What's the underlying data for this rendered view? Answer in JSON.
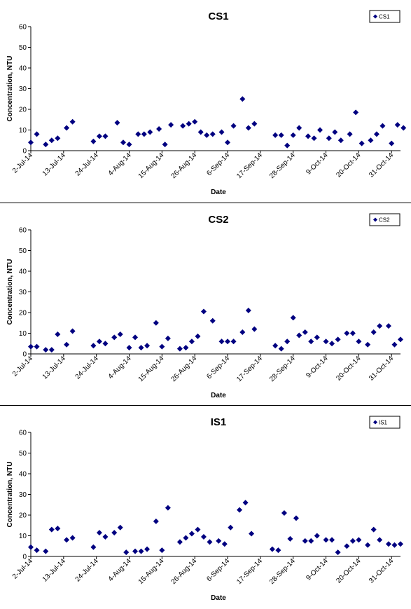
{
  "chart_data": [
    {
      "type": "scatter",
      "title": "CS1",
      "xlabel": "Date",
      "ylabel": "Concentration, NTU",
      "ylim": [
        0,
        60
      ],
      "yticks": [
        "0",
        "10",
        "20",
        "30",
        "40",
        "50",
        "60"
      ],
      "xlim": [
        "2014-07-02",
        "2014-11-03"
      ],
      "xticks": [
        "2-Jul-14",
        "13-Jul-14",
        "24-Jul-14",
        "4-Aug-14",
        "15-Aug-14",
        "26-Aug-14",
        "6-Sep-14",
        "17-Sep-14",
        "28-Sep-14",
        "9-Oct-14",
        "20-Oct-14",
        "31-Oct-14"
      ],
      "legend": "top-right",
      "grid": false,
      "marker_color": "#000080",
      "series": [
        {
          "name": "CS1",
          "points": [
            {
              "x": "2014-07-02",
              "y": 4
            },
            {
              "x": "2014-07-04",
              "y": 8
            },
            {
              "x": "2014-07-07",
              "y": 3
            },
            {
              "x": "2014-07-09",
              "y": 5
            },
            {
              "x": "2014-07-11",
              "y": 6
            },
            {
              "x": "2014-07-14",
              "y": 11
            },
            {
              "x": "2014-07-16",
              "y": 14
            },
            {
              "x": "2014-07-23",
              "y": 4.5
            },
            {
              "x": "2014-07-25",
              "y": 7
            },
            {
              "x": "2014-07-27",
              "y": 7
            },
            {
              "x": "2014-07-31",
              "y": 13.5
            },
            {
              "x": "2014-08-02",
              "y": 4
            },
            {
              "x": "2014-08-04",
              "y": 3
            },
            {
              "x": "2014-08-07",
              "y": 8
            },
            {
              "x": "2014-08-09",
              "y": 8
            },
            {
              "x": "2014-08-11",
              "y": 9
            },
            {
              "x": "2014-08-14",
              "y": 10.5
            },
            {
              "x": "2014-08-16",
              "y": 3
            },
            {
              "x": "2014-08-18",
              "y": 12.5
            },
            {
              "x": "2014-08-22",
              "y": 12
            },
            {
              "x": "2014-08-24",
              "y": 13
            },
            {
              "x": "2014-08-26",
              "y": 14
            },
            {
              "x": "2014-08-28",
              "y": 9
            },
            {
              "x": "2014-08-30",
              "y": 7.5
            },
            {
              "x": "2014-09-01",
              "y": 8
            },
            {
              "x": "2014-09-04",
              "y": 9
            },
            {
              "x": "2014-09-06",
              "y": 4
            },
            {
              "x": "2014-09-08",
              "y": 12
            },
            {
              "x": "2014-09-11",
              "y": 25
            },
            {
              "x": "2014-09-13",
              "y": 11
            },
            {
              "x": "2014-09-15",
              "y": 13
            },
            {
              "x": "2014-09-22",
              "y": 7.5
            },
            {
              "x": "2014-09-24",
              "y": 7.5
            },
            {
              "x": "2014-09-26",
              "y": 2.5
            },
            {
              "x": "2014-09-28",
              "y": 7.5
            },
            {
              "x": "2014-09-30",
              "y": 11
            },
            {
              "x": "2014-10-03",
              "y": 7
            },
            {
              "x": "2014-10-05",
              "y": 6
            },
            {
              "x": "2014-10-07",
              "y": 10
            },
            {
              "x": "2014-10-10",
              "y": 6
            },
            {
              "x": "2014-10-12",
              "y": 9
            },
            {
              "x": "2014-10-14",
              "y": 5
            },
            {
              "x": "2014-10-17",
              "y": 8
            },
            {
              "x": "2014-10-19",
              "y": 18.5
            },
            {
              "x": "2014-10-21",
              "y": 3.5
            },
            {
              "x": "2014-10-24",
              "y": 5
            },
            {
              "x": "2014-10-26",
              "y": 8
            },
            {
              "x": "2014-10-28",
              "y": 12
            },
            {
              "x": "2014-10-31",
              "y": 3.5
            },
            {
              "x": "2014-11-02",
              "y": 12.5
            },
            {
              "x": "2014-11-04",
              "y": 11
            }
          ]
        }
      ]
    },
    {
      "type": "scatter",
      "title": "CS2",
      "xlabel": "Date",
      "ylabel": "Concentration, NTU",
      "ylim": [
        0,
        60
      ],
      "yticks": [
        "0",
        "10",
        "20",
        "30",
        "40",
        "50",
        "60"
      ],
      "xlim": [
        "2014-07-02",
        "2014-11-03"
      ],
      "xticks": [
        "2-Jul-14",
        "13-Jul-14",
        "24-Jul-14",
        "4-Aug-14",
        "15-Aug-14",
        "26-Aug-14",
        "6-Sep-14",
        "17-Sep-14",
        "28-Sep-14",
        "9-Oct-14",
        "20-Oct-14",
        "31-Oct-14"
      ],
      "legend": "top-right",
      "grid": false,
      "marker_color": "#000080",
      "series": [
        {
          "name": "CS2",
          "points": [
            {
              "x": "2014-07-02",
              "y": 3.5
            },
            {
              "x": "2014-07-04",
              "y": 3.5
            },
            {
              "x": "2014-07-07",
              "y": 2
            },
            {
              "x": "2014-07-09",
              "y": 2
            },
            {
              "x": "2014-07-11",
              "y": 9.5
            },
            {
              "x": "2014-07-14",
              "y": 4.5
            },
            {
              "x": "2014-07-16",
              "y": 11
            },
            {
              "x": "2014-07-23",
              "y": 4
            },
            {
              "x": "2014-07-25",
              "y": 6
            },
            {
              "x": "2014-07-27",
              "y": 5
            },
            {
              "x": "2014-07-30",
              "y": 8
            },
            {
              "x": "2014-08-01",
              "y": 9.5
            },
            {
              "x": "2014-08-04",
              "y": 3
            },
            {
              "x": "2014-08-06",
              "y": 8
            },
            {
              "x": "2014-08-08",
              "y": 3
            },
            {
              "x": "2014-08-10",
              "y": 4
            },
            {
              "x": "2014-08-13",
              "y": 15
            },
            {
              "x": "2014-08-15",
              "y": 3.5
            },
            {
              "x": "2014-08-17",
              "y": 7.5
            },
            {
              "x": "2014-08-21",
              "y": 2.5
            },
            {
              "x": "2014-08-23",
              "y": 3
            },
            {
              "x": "2014-08-25",
              "y": 6
            },
            {
              "x": "2014-08-27",
              "y": 8.5
            },
            {
              "x": "2014-08-29",
              "y": 20.5
            },
            {
              "x": "2014-09-01",
              "y": 16
            },
            {
              "x": "2014-09-04",
              "y": 6
            },
            {
              "x": "2014-09-06",
              "y": 6
            },
            {
              "x": "2014-09-08",
              "y": 6
            },
            {
              "x": "2014-09-11",
              "y": 10.5
            },
            {
              "x": "2014-09-13",
              "y": 21
            },
            {
              "x": "2014-09-15",
              "y": 12
            },
            {
              "x": "2014-09-22",
              "y": 4
            },
            {
              "x": "2014-09-24",
              "y": 2.5
            },
            {
              "x": "2014-09-26",
              "y": 6
            },
            {
              "x": "2014-09-28",
              "y": 17.5
            },
            {
              "x": "2014-09-30",
              "y": 9
            },
            {
              "x": "2014-10-02",
              "y": 10.5
            },
            {
              "x": "2014-10-04",
              "y": 6
            },
            {
              "x": "2014-10-06",
              "y": 8
            },
            {
              "x": "2014-10-09",
              "y": 6
            },
            {
              "x": "2014-10-11",
              "y": 5
            },
            {
              "x": "2014-10-13",
              "y": 7
            },
            {
              "x": "2014-10-16",
              "y": 10
            },
            {
              "x": "2014-10-18",
              "y": 10
            },
            {
              "x": "2014-10-20",
              "y": 6
            },
            {
              "x": "2014-10-23",
              "y": 4.5
            },
            {
              "x": "2014-10-25",
              "y": 10.5
            },
            {
              "x": "2014-10-27",
              "y": 13.5
            },
            {
              "x": "2014-10-30",
              "y": 13.5
            },
            {
              "x": "2014-11-01",
              "y": 4.5
            },
            {
              "x": "2014-11-03",
              "y": 7
            }
          ]
        }
      ]
    },
    {
      "type": "scatter",
      "title": "IS1",
      "xlabel": "Date",
      "ylabel": "Concentration, NTU",
      "ylim": [
        0,
        60
      ],
      "yticks": [
        "0",
        "10",
        "20",
        "30",
        "40",
        "50",
        "60"
      ],
      "xlim": [
        "2014-07-02",
        "2014-11-03"
      ],
      "xticks": [
        "2-Jul-14",
        "13-Jul-14",
        "24-Jul-14",
        "4-Aug-14",
        "15-Aug-14",
        "26-Aug-14",
        "6-Sep-14",
        "17-Sep-14",
        "28-Sep-14",
        "9-Oct-14",
        "20-Oct-14",
        "31-Oct-14"
      ],
      "legend": "top-right",
      "grid": false,
      "marker_color": "#000080",
      "series": [
        {
          "name": "IS1",
          "points": [
            {
              "x": "2014-07-02",
              "y": 4.5
            },
            {
              "x": "2014-07-04",
              "y": 3
            },
            {
              "x": "2014-07-07",
              "y": 2.5
            },
            {
              "x": "2014-07-09",
              "y": 13
            },
            {
              "x": "2014-07-11",
              "y": 13.5
            },
            {
              "x": "2014-07-14",
              "y": 8
            },
            {
              "x": "2014-07-16",
              "y": 9
            },
            {
              "x": "2014-07-23",
              "y": 4.5
            },
            {
              "x": "2014-07-25",
              "y": 11.5
            },
            {
              "x": "2014-07-27",
              "y": 9.5
            },
            {
              "x": "2014-07-30",
              "y": 11.5
            },
            {
              "x": "2014-08-01",
              "y": 14
            },
            {
              "x": "2014-08-03",
              "y": 2
            },
            {
              "x": "2014-08-06",
              "y": 2.5
            },
            {
              "x": "2014-08-08",
              "y": 2.5
            },
            {
              "x": "2014-08-10",
              "y": 3.5
            },
            {
              "x": "2014-08-13",
              "y": 17
            },
            {
              "x": "2014-08-15",
              "y": 3
            },
            {
              "x": "2014-08-17",
              "y": 23.5
            },
            {
              "x": "2014-08-21",
              "y": 7
            },
            {
              "x": "2014-08-23",
              "y": 9
            },
            {
              "x": "2014-08-25",
              "y": 11
            },
            {
              "x": "2014-08-27",
              "y": 13
            },
            {
              "x": "2014-08-29",
              "y": 9.5
            },
            {
              "x": "2014-08-31",
              "y": 7
            },
            {
              "x": "2014-09-03",
              "y": 7.5
            },
            {
              "x": "2014-09-05",
              "y": 6
            },
            {
              "x": "2014-09-07",
              "y": 14
            },
            {
              "x": "2014-09-10",
              "y": 22.5
            },
            {
              "x": "2014-09-12",
              "y": 26
            },
            {
              "x": "2014-09-14",
              "y": 11
            },
            {
              "x": "2014-09-21",
              "y": 3.5
            },
            {
              "x": "2014-09-23",
              "y": 3
            },
            {
              "x": "2014-09-25",
              "y": 21
            },
            {
              "x": "2014-09-27",
              "y": 8.5
            },
            {
              "x": "2014-09-29",
              "y": 18.5
            },
            {
              "x": "2014-10-02",
              "y": 7.5
            },
            {
              "x": "2014-10-04",
              "y": 7.5
            },
            {
              "x": "2014-10-06",
              "y": 10
            },
            {
              "x": "2014-10-09",
              "y": 8
            },
            {
              "x": "2014-10-11",
              "y": 8
            },
            {
              "x": "2014-10-13",
              "y": 2
            },
            {
              "x": "2014-10-16",
              "y": 5
            },
            {
              "x": "2014-10-18",
              "y": 7.5
            },
            {
              "x": "2014-10-20",
              "y": 8
            },
            {
              "x": "2014-10-23",
              "y": 5.5
            },
            {
              "x": "2014-10-25",
              "y": 13
            },
            {
              "x": "2014-10-27",
              "y": 8
            },
            {
              "x": "2014-10-30",
              "y": 6
            },
            {
              "x": "2014-11-01",
              "y": 5.5
            },
            {
              "x": "2014-11-03",
              "y": 6
            }
          ]
        }
      ]
    }
  ]
}
